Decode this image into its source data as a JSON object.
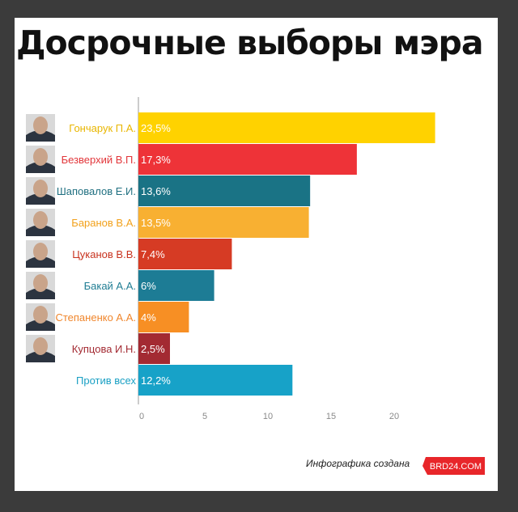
{
  "page": {
    "footer_text": "Инфографика создана",
    "logo_text": "BRD24.COM"
  },
  "chart_data": {
    "type": "bar",
    "orientation": "horizontal",
    "title": "Досрочные выборы мэра",
    "xlabel": "",
    "ylabel": "",
    "xlim": [
      0,
      24
    ],
    "xticks": [
      0,
      5,
      10,
      15,
      20
    ],
    "grid": false,
    "legend": "none",
    "categories": [
      "Гончарук П.А.",
      "Безверхий В.П.",
      "Шаповалов Е.И.",
      "Баранов В.А.",
      "Цуканов В.В.",
      "Бакай А.А.",
      "Степаненко А.А.",
      "Купцова И.Н.",
      "Против всех"
    ],
    "values": [
      23.5,
      17.3,
      13.6,
      13.5,
      7.4,
      6,
      4,
      2.5,
      12.2
    ],
    "value_labels": [
      "23,5%",
      "17,3%",
      "13,6%",
      "13,5%",
      "7,4%",
      "6%",
      "4%",
      "2,5%",
      "12,2%"
    ],
    "colors": [
      "#ffd200",
      "#ee3338",
      "#1a7385",
      "#f8b032",
      "#d63b24",
      "#1d7c95",
      "#f78f24",
      "#a32a32",
      "#17a2c8"
    ],
    "label_colors": [
      "#e9b600",
      "#e2363a",
      "#1f6f80",
      "#f2a11b",
      "#c8331f",
      "#1f7d93",
      "#f0862c",
      "#a32a32",
      "#1aa0c4"
    ],
    "avatars": [
      "candidate-photo-goncharuk",
      "candidate-photo-bezverkhiy",
      "candidate-photo-shapovalov",
      "candidate-photo-baranov",
      "candidate-photo-tsukanov",
      "candidate-photo-bakay",
      "candidate-photo-stepanenko",
      "candidate-photo-kuptsova"
    ]
  }
}
